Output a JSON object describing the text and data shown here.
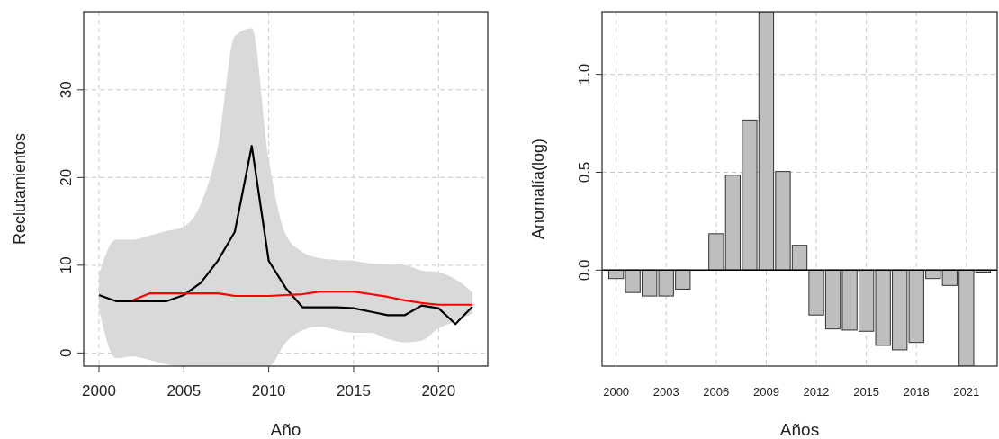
{
  "chart_data": [
    {
      "type": "line",
      "xlabel": "Año",
      "ylabel": "Reclutamientos",
      "x": [
        2000,
        2001,
        2002,
        2003,
        2004,
        2005,
        2006,
        2007,
        2008,
        2009,
        2010,
        2011,
        2012,
        2013,
        2014,
        2015,
        2016,
        2017,
        2018,
        2019,
        2020,
        2021,
        2022
      ],
      "xlim": [
        1999.1,
        2022.9
      ],
      "ylim": [
        -1.5,
        38.9
      ],
      "xticks": [
        2000,
        2005,
        2010,
        2015,
        2020
      ],
      "yticks": [
        0,
        10,
        20,
        30
      ],
      "grid": true,
      "line_style": "solid",
      "marker": "none",
      "series": [
        {
          "color": "#000000",
          "values": [
            6.6,
            5.9,
            5.9,
            5.9,
            5.9,
            6.6,
            8.0,
            10.5,
            13.8,
            23.6,
            10.5,
            7.4,
            5.2,
            5.2,
            5.2,
            5.1,
            4.7,
            4.3,
            4.3,
            5.4,
            5.1,
            3.3,
            5.3
          ],
          "lower": [
            5.0,
            -0.6,
            -0.4,
            -0.8,
            -1.3,
            -1.5,
            -1.5,
            -1.5,
            -1.5,
            -1.5,
            -1.5,
            1.2,
            2.6,
            3.0,
            2.6,
            2.3,
            2.3,
            1.6,
            1.2,
            1.4,
            2.8,
            3.6,
            4.5
          ],
          "upper": [
            8.9,
            12.9,
            12.9,
            13.4,
            13.9,
            14.4,
            17.0,
            23.5,
            36.1,
            37.0,
            22.1,
            13.5,
            11.5,
            10.8,
            10.6,
            10.5,
            10.2,
            10.1,
            10.0,
            9.4,
            9.2,
            8.4,
            6.9
          ]
        },
        {
          "color": "#ff0000",
          "values": [
            null,
            null,
            6.0,
            6.8,
            6.8,
            6.8,
            6.8,
            6.8,
            6.5,
            6.5,
            6.5,
            6.6,
            6.7,
            7.0,
            7.0,
            7.0,
            6.7,
            6.4,
            6.0,
            5.7,
            5.5,
            5.5,
            5.5
          ]
        }
      ]
    },
    {
      "type": "bar",
      "xlabel": "Años",
      "ylabel": "Anomalía(log)",
      "categories": [
        "2000",
        null,
        null,
        "2003",
        null,
        null,
        "2006",
        null,
        null,
        "2009",
        null,
        null,
        "2012",
        null,
        null,
        "2015",
        null,
        null,
        "2018",
        null,
        null,
        "2021",
        null
      ],
      "values": [
        -0.043,
        -0.114,
        -0.132,
        -0.132,
        -0.097,
        0,
        0.186,
        0.485,
        0.767,
        1.32,
        0.504,
        0.127,
        -0.229,
        -0.3,
        -0.306,
        -0.312,
        -0.384,
        -0.407,
        -0.369,
        -0.043,
        -0.078,
        -0.49,
        -0.01
      ],
      "color": "#bebebe",
      "ylim": [
        -0.49,
        1.32
      ],
      "yticks": [
        {
          "value": 0,
          "label": "0.0"
        },
        {
          "value": 0.5,
          "label": "0.5"
        },
        {
          "value": 1,
          "label": "1.0"
        }
      ],
      "grid": true,
      "ref_lines": [
        {
          "axis": "y",
          "value": 0,
          "color": "#000000"
        }
      ]
    }
  ]
}
